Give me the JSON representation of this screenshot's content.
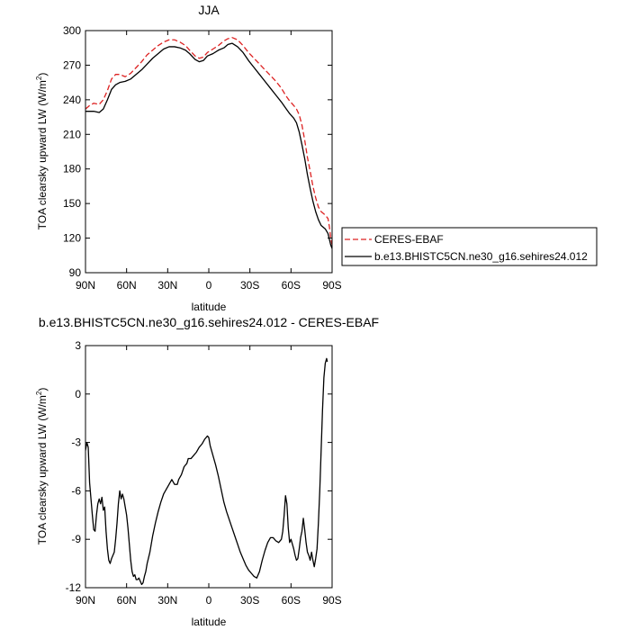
{
  "chart_data": [
    {
      "type": "line",
      "title": "JJA",
      "xlabel": "latitude",
      "ylabel": "TOA clearsky upward LW (W/m",
      "ylabel_sup": "2",
      "ylabel_close": ")",
      "xlim": [
        90,
        -90
      ],
      "ylim": [
        90,
        300
      ],
      "xticks": [
        90,
        60,
        30,
        0,
        -30,
        -60,
        -90
      ],
      "xtick_labels": [
        "90N",
        "60N",
        "30N",
        "0",
        "30S",
        "60S",
        "90S"
      ],
      "yticks": [
        90,
        120,
        150,
        180,
        210,
        240,
        270,
        300
      ],
      "ytick_labels": [
        "90",
        "120",
        "150",
        "180",
        "210",
        "240",
        "270",
        "300"
      ],
      "legend": "right",
      "grid": false,
      "series": [
        {
          "name": "CERES-EBAF",
          "color": "#dd2222",
          "style": "dashed",
          "points": [
            [
              90,
              232
            ],
            [
              87,
              235
            ],
            [
              84,
              237
            ],
            [
              80,
              236
            ],
            [
              77,
              240
            ],
            [
              74,
              248
            ],
            [
              71,
              258
            ],
            [
              68,
              262
            ],
            [
              65,
              262
            ],
            [
              61,
              260
            ],
            [
              57,
              263
            ],
            [
              53,
              268
            ],
            [
              49,
              273
            ],
            [
              45,
              279
            ],
            [
              41,
              283
            ],
            [
              37,
              287
            ],
            [
              33,
              290
            ],
            [
              29,
              292
            ],
            [
              25,
              292
            ],
            [
              21,
              290
            ],
            [
              17,
              287
            ],
            [
              14,
              283
            ],
            [
              10,
              278
            ],
            [
              7,
              276
            ],
            [
              4,
              277
            ],
            [
              1,
              281
            ],
            [
              -3,
              284
            ],
            [
              -7,
              287
            ],
            [
              -11,
              291
            ],
            [
              -14,
              293
            ],
            [
              -17,
              294
            ],
            [
              -21,
              292
            ],
            [
              -25,
              287
            ],
            [
              -29,
              281
            ],
            [
              -33,
              276
            ],
            [
              -37,
              271
            ],
            [
              -41,
              266
            ],
            [
              -45,
              261
            ],
            [
              -49,
              256
            ],
            [
              -53,
              250
            ],
            [
              -56,
              244
            ],
            [
              -59,
              239
            ],
            [
              -62,
              235
            ],
            [
              -64,
              232
            ],
            [
              -66,
              227
            ],
            [
              -68,
              218
            ],
            [
              -70,
              205
            ],
            [
              -72,
              190
            ],
            [
              -74,
              178
            ],
            [
              -76,
              165
            ],
            [
              -78,
              155
            ],
            [
              -80,
              147
            ],
            [
              -82,
              143
            ],
            [
              -85,
              140
            ],
            [
              -87,
              137
            ],
            [
              -88,
              130
            ],
            [
              -89,
              120
            ],
            [
              -90,
              114
            ]
          ]
        },
        {
          "name": "b.e13.BHISTC5CN.ne30_g16.sehires24.012",
          "color": "#000000",
          "style": "solid",
          "points": [
            [
              90,
              230
            ],
            [
              87,
              230
            ],
            [
              84,
              230
            ],
            [
              80,
              229
            ],
            [
              77,
              232
            ],
            [
              74,
              240
            ],
            [
              71,
              249
            ],
            [
              68,
              253
            ],
            [
              65,
              255
            ],
            [
              61,
              256
            ],
            [
              57,
              258
            ],
            [
              53,
              262
            ],
            [
              49,
              266
            ],
            [
              45,
              271
            ],
            [
              41,
              276
            ],
            [
              37,
              280
            ],
            [
              33,
              284
            ],
            [
              29,
              286
            ],
            [
              25,
              286
            ],
            [
              21,
              285
            ],
            [
              17,
              283
            ],
            [
              14,
              280
            ],
            [
              10,
              275
            ],
            [
              7,
              273
            ],
            [
              4,
              274
            ],
            [
              1,
              278
            ],
            [
              -3,
              280
            ],
            [
              -7,
              283
            ],
            [
              -11,
              285
            ],
            [
              -14,
              288
            ],
            [
              -17,
              289
            ],
            [
              -21,
              286
            ],
            [
              -25,
              281
            ],
            [
              -29,
              274
            ],
            [
              -33,
              268
            ],
            [
              -37,
              262
            ],
            [
              -41,
              256
            ],
            [
              -45,
              250
            ],
            [
              -49,
              244
            ],
            [
              -53,
              238
            ],
            [
              -56,
              233
            ],
            [
              -59,
              228
            ],
            [
              -62,
              224
            ],
            [
              -64,
              220
            ],
            [
              -66,
              212
            ],
            [
              -68,
              201
            ],
            [
              -70,
              189
            ],
            [
              -72,
              175
            ],
            [
              -74,
              163
            ],
            [
              -76,
              152
            ],
            [
              -78,
              143
            ],
            [
              -80,
              136
            ],
            [
              -82,
              131
            ],
            [
              -85,
              128
            ],
            [
              -87,
              124
            ],
            [
              -88,
              119
            ],
            [
              -89,
              114
            ],
            [
              -90,
              111
            ]
          ]
        }
      ]
    },
    {
      "type": "line",
      "title": "b.e13.BHISTC5CN.ne30_g16.sehires24.012 - CERES-EBAF",
      "xlabel": "latitude",
      "ylabel": "TOA clearsky upward LW (W/m",
      "ylabel_sup": "2",
      "ylabel_close": ")",
      "xlim": [
        90,
        -90
      ],
      "ylim": [
        -12,
        3
      ],
      "xticks": [
        90,
        60,
        30,
        0,
        -30,
        -60,
        -90
      ],
      "xtick_labels": [
        "90N",
        "60N",
        "30N",
        "0",
        "30S",
        "60S",
        "90S"
      ],
      "yticks": [
        -12,
        -9,
        -6,
        -3,
        0,
        3
      ],
      "ytick_labels": [
        "-12",
        "-9",
        "-6",
        "-3",
        "0",
        "3"
      ],
      "grid": false,
      "series": [
        {
          "color": "#000000",
          "style": "solid",
          "points": [
            [
              90,
              -3.5
            ],
            [
              89,
              -3.0
            ],
            [
              88,
              -3.3
            ],
            [
              87,
              -5.5
            ],
            [
              86,
              -6.5
            ],
            [
              85,
              -7.5
            ],
            [
              84,
              -8.4
            ],
            [
              83,
              -8.5
            ],
            [
              82,
              -7.5
            ],
            [
              81,
              -6.8
            ],
            [
              80,
              -6.5
            ],
            [
              79,
              -6.8
            ],
            [
              78,
              -6.4
            ],
            [
              77,
              -7.2
            ],
            [
              76,
              -7.0
            ],
            [
              75,
              -8.5
            ],
            [
              74,
              -9.6
            ],
            [
              73,
              -10.3
            ],
            [
              72,
              -10.5
            ],
            [
              71,
              -10.2
            ],
            [
              70,
              -10.0
            ],
            [
              69,
              -9.8
            ],
            [
              68,
              -9.0
            ],
            [
              67,
              -8.0
            ],
            [
              66,
              -6.8
            ],
            [
              65,
              -6.0
            ],
            [
              64,
              -6.5
            ],
            [
              63,
              -6.2
            ],
            [
              62,
              -6.5
            ],
            [
              61,
              -7.0
            ],
            [
              60,
              -7.5
            ],
            [
              59,
              -8.3
            ],
            [
              58,
              -9.3
            ],
            [
              57,
              -10.3
            ],
            [
              56,
              -11.0
            ],
            [
              55,
              -11.3
            ],
            [
              54,
              -11.2
            ],
            [
              53,
              -11.5
            ],
            [
              52,
              -11.5
            ],
            [
              51,
              -11.4
            ],
            [
              50,
              -11.6
            ],
            [
              49,
              -11.8
            ],
            [
              48,
              -11.7
            ],
            [
              47,
              -11.3
            ],
            [
              46,
              -11.0
            ],
            [
              45,
              -10.5
            ],
            [
              43,
              -9.8
            ],
            [
              41,
              -8.8
            ],
            [
              39,
              -8.0
            ],
            [
              37,
              -7.3
            ],
            [
              35,
              -6.7
            ],
            [
              33,
              -6.2
            ],
            [
              31,
              -5.9
            ],
            [
              29,
              -5.6
            ],
            [
              27,
              -5.3
            ],
            [
              25,
              -5.6
            ],
            [
              23,
              -5.6
            ],
            [
              22,
              -5.3
            ],
            [
              20,
              -5.0
            ],
            [
              18,
              -4.5
            ],
            [
              16,
              -4.3
            ],
            [
              15,
              -4.0
            ],
            [
              13,
              -4.0
            ],
            [
              11,
              -3.8
            ],
            [
              9,
              -3.6
            ],
            [
              7,
              -3.3
            ],
            [
              5,
              -3.1
            ],
            [
              3,
              -2.8
            ],
            [
              1,
              -2.6
            ],
            [
              0,
              -2.7
            ],
            [
              -1,
              -3.2
            ],
            [
              -3,
              -3.8
            ],
            [
              -5,
              -4.4
            ],
            [
              -7,
              -5.1
            ],
            [
              -9,
              -5.9
            ],
            [
              -11,
              -6.7
            ],
            [
              -13,
              -7.3
            ],
            [
              -15,
              -7.8
            ],
            [
              -17,
              -8.3
            ],
            [
              -19,
              -8.8
            ],
            [
              -21,
              -9.3
            ],
            [
              -23,
              -9.8
            ],
            [
              -25,
              -10.2
            ],
            [
              -27,
              -10.6
            ],
            [
              -29,
              -10.9
            ],
            [
              -31,
              -11.1
            ],
            [
              -33,
              -11.3
            ],
            [
              -35,
              -11.4
            ],
            [
              -37,
              -11.0
            ],
            [
              -39,
              -10.3
            ],
            [
              -41,
              -9.7
            ],
            [
              -43,
              -9.2
            ],
            [
              -45,
              -8.9
            ],
            [
              -47,
              -8.9
            ],
            [
              -49,
              -9.1
            ],
            [
              -51,
              -9.2
            ],
            [
              -53,
              -9.0
            ],
            [
              -54,
              -8.5
            ],
            [
              -55,
              -7.5
            ],
            [
              -56,
              -6.3
            ],
            [
              -57,
              -6.8
            ],
            [
              -58,
              -8.3
            ],
            [
              -59,
              -9.2
            ],
            [
              -60,
              -9.0
            ],
            [
              -61,
              -9.3
            ],
            [
              -62,
              -9.6
            ],
            [
              -63,
              -10.0
            ],
            [
              -64,
              -10.3
            ],
            [
              -65,
              -10.2
            ],
            [
              -66,
              -9.6
            ],
            [
              -67,
              -8.9
            ],
            [
              -68,
              -8.5
            ],
            [
              -69,
              -7.7
            ],
            [
              -70,
              -8.4
            ],
            [
              -71,
              -9.2
            ],
            [
              -72,
              -9.8
            ],
            [
              -73,
              -10.0
            ],
            [
              -74,
              -10.3
            ],
            [
              -75,
              -9.8
            ],
            [
              -76,
              -10.3
            ],
            [
              -77,
              -10.7
            ],
            [
              -78,
              -10.2
            ],
            [
              -79,
              -9.6
            ],
            [
              -80,
              -8.0
            ],
            [
              -81,
              -6.0
            ],
            [
              -82,
              -3.5
            ],
            [
              -83,
              -1.0
            ],
            [
              -84,
              1.0
            ],
            [
              -85,
              1.9
            ],
            [
              -86,
              2.2
            ],
            [
              -86.5,
              2.0
            ]
          ]
        }
      ]
    }
  ]
}
